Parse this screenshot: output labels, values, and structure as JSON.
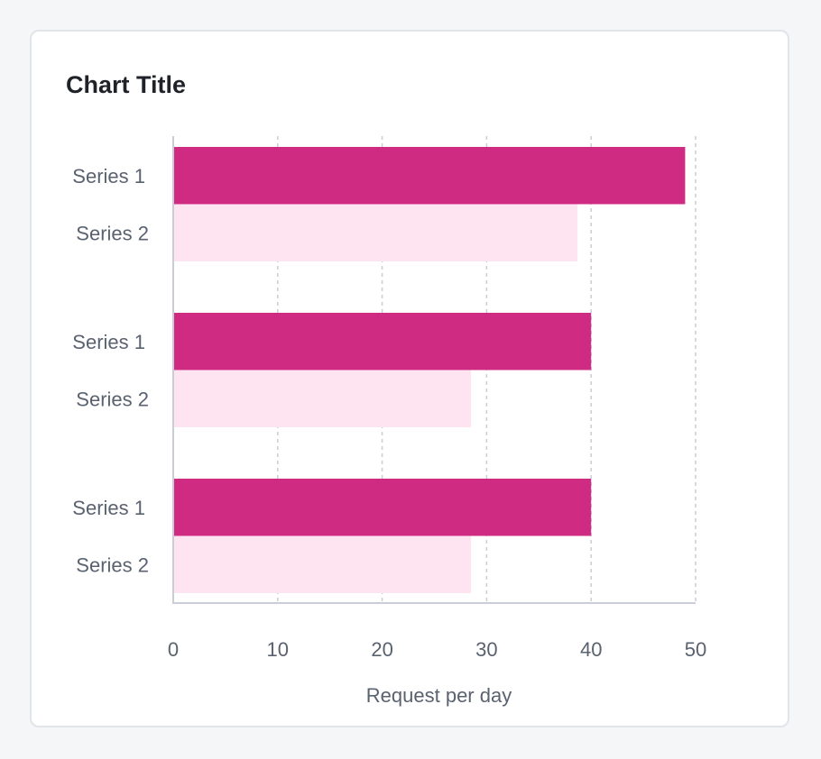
{
  "chart_data": {
    "type": "bar",
    "orientation": "horizontal",
    "title": "Chart Title",
    "xlabel": "Request per day",
    "ylabel": "",
    "xlim": [
      0,
      50
    ],
    "x_ticks": [
      0,
      10,
      20,
      30,
      40,
      50
    ],
    "grid": "vertical-dashed",
    "legend": "none",
    "groups": [
      {
        "bars": [
          {
            "label": "Series 1",
            "value": 49
          },
          {
            "label": "Series 2",
            "value": 38.7
          }
        ]
      },
      {
        "bars": [
          {
            "label": "Series 1",
            "value": 40
          },
          {
            "label": "Series 2",
            "value": 28.5
          }
        ]
      },
      {
        "bars": [
          {
            "label": "Series 1",
            "value": 40
          },
          {
            "label": "Series 2",
            "value": 28.5
          }
        ]
      }
    ],
    "colors": {
      "Series 1": "#cf2b82",
      "Series 2": "#fde4f0"
    }
  }
}
